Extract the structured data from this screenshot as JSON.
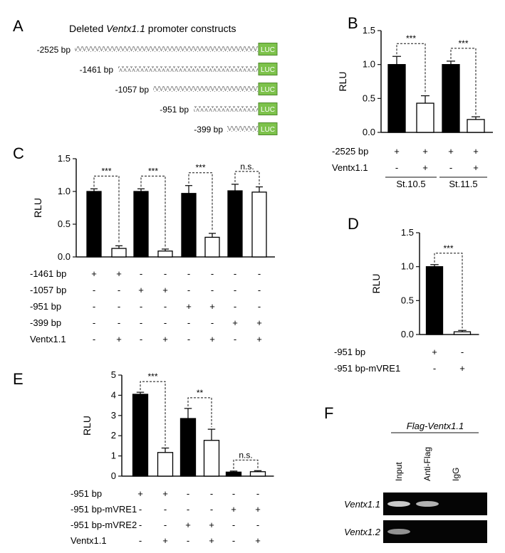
{
  "panel_letters": {
    "A": "A",
    "B": "B",
    "C": "C",
    "D": "D",
    "E": "E",
    "F": "F"
  },
  "panel_a": {
    "title_prefix": "Deleted ",
    "title_gene": "Ventx1.1",
    "title_suffix": " promoter constructs",
    "constructs": [
      {
        "label": "-2525 bp",
        "box": "LUC"
      },
      {
        "label": "-1461 bp",
        "box": "LUC"
      },
      {
        "label": "-1057 bp",
        "box": "LUC"
      },
      {
        "label": "-951 bp",
        "box": "LUC"
      },
      {
        "label": "-399 bp",
        "box": "LUC"
      }
    ],
    "box_color": "#7dc24b"
  },
  "chart_data": [
    {
      "panel": "B",
      "type": "bar",
      "ylabel": "RLU",
      "ylim": [
        0,
        1.5
      ],
      "yticks": [
        "0.0",
        "0.5",
        "1.0",
        "1.5"
      ],
      "bars": [
        {
          "value": 1.0,
          "err": 0.12,
          "fill": "black"
        },
        {
          "value": 0.43,
          "err": 0.11,
          "fill": "white"
        },
        {
          "value": 1.0,
          "err": 0.05,
          "fill": "black"
        },
        {
          "value": 0.19,
          "err": 0.04,
          "fill": "white"
        }
      ],
      "significance": [
        {
          "from": 0,
          "to": 1,
          "label": "***"
        },
        {
          "from": 2,
          "to": 3,
          "label": "***"
        }
      ],
      "condition_rows": [
        {
          "label": "-2525 bp",
          "marks": [
            "+",
            "+",
            "+",
            "+"
          ]
        },
        {
          "label": "Ventx1.1",
          "marks": [
            "-",
            "+",
            "-",
            "+"
          ]
        }
      ],
      "groups": [
        {
          "label": "St.10.5",
          "from": 0,
          "to": 1
        },
        {
          "label": "St.11.5",
          "from": 2,
          "to": 3
        }
      ]
    },
    {
      "panel": "C",
      "type": "bar",
      "ylabel": "RLU",
      "ylim": [
        0,
        1.5
      ],
      "yticks": [
        "0.0",
        "0.5",
        "1.0",
        "1.5"
      ],
      "bars": [
        {
          "value": 1.0,
          "err": 0.04,
          "fill": "black"
        },
        {
          "value": 0.13,
          "err": 0.04,
          "fill": "white"
        },
        {
          "value": 1.0,
          "err": 0.04,
          "fill": "black"
        },
        {
          "value": 0.09,
          "err": 0.03,
          "fill": "white"
        },
        {
          "value": 0.97,
          "err": 0.12,
          "fill": "black"
        },
        {
          "value": 0.3,
          "err": 0.06,
          "fill": "white"
        },
        {
          "value": 1.01,
          "err": 0.1,
          "fill": "black"
        },
        {
          "value": 0.99,
          "err": 0.08,
          "fill": "white"
        }
      ],
      "significance": [
        {
          "from": 0,
          "to": 1,
          "label": "***"
        },
        {
          "from": 2,
          "to": 3,
          "label": "***"
        },
        {
          "from": 4,
          "to": 5,
          "label": "***"
        },
        {
          "from": 6,
          "to": 7,
          "label": "n.s."
        }
      ],
      "condition_rows": [
        {
          "label": "-1461 bp",
          "marks": [
            "+",
            "+",
            "-",
            "-",
            "-",
            "-",
            "-",
            "-"
          ]
        },
        {
          "label": "-1057 bp",
          "marks": [
            "-",
            "-",
            "+",
            "+",
            "-",
            "-",
            "-",
            "-"
          ]
        },
        {
          "label": "-951 bp",
          "marks": [
            "-",
            "-",
            "-",
            "-",
            "+",
            "+",
            "-",
            "-"
          ]
        },
        {
          "label": "-399 bp",
          "marks": [
            "-",
            "-",
            "-",
            "-",
            "-",
            "-",
            "+",
            "+"
          ]
        },
        {
          "label": "Ventx1.1",
          "marks": [
            "-",
            "+",
            "-",
            "+",
            "-",
            "+",
            "-",
            "+"
          ]
        }
      ]
    },
    {
      "panel": "D",
      "type": "bar",
      "ylabel": "RLU",
      "ylim": [
        0,
        1.5
      ],
      "yticks": [
        "0.0",
        "0.5",
        "1.0",
        "1.5"
      ],
      "bars": [
        {
          "value": 1.0,
          "err": 0.03,
          "fill": "black"
        },
        {
          "value": 0.04,
          "err": 0.02,
          "fill": "white"
        }
      ],
      "significance": [
        {
          "from": 0,
          "to": 1,
          "label": "***"
        }
      ],
      "condition_rows": [
        {
          "label": "-951 bp",
          "marks": [
            "+",
            "-"
          ]
        },
        {
          "label": "-951 bp-mVRE1",
          "marks": [
            "-",
            "+"
          ]
        }
      ]
    },
    {
      "panel": "E",
      "type": "bar",
      "ylabel": "RLU",
      "ylim": [
        0,
        5
      ],
      "yticks": [
        "0",
        "1",
        "2",
        "3",
        "4",
        "5"
      ],
      "bars": [
        {
          "value": 4.05,
          "err": 0.1,
          "fill": "black"
        },
        {
          "value": 1.17,
          "err": 0.22,
          "fill": "white"
        },
        {
          "value": 2.85,
          "err": 0.5,
          "fill": "black"
        },
        {
          "value": 1.77,
          "err": 0.55,
          "fill": "white"
        },
        {
          "value": 0.2,
          "err": 0.05,
          "fill": "black"
        },
        {
          "value": 0.22,
          "err": 0.05,
          "fill": "white"
        }
      ],
      "significance": [
        {
          "from": 0,
          "to": 1,
          "label": "***"
        },
        {
          "from": 2,
          "to": 3,
          "label": "**"
        },
        {
          "from": 4,
          "to": 5,
          "label": "n.s."
        }
      ],
      "condition_rows": [
        {
          "label": "-951 bp",
          "marks": [
            "+",
            "+",
            "-",
            "-",
            "-",
            "-"
          ]
        },
        {
          "label": "-951 bp-mVRE1",
          "marks": [
            "-",
            "-",
            "-",
            "-",
            "+",
            "+"
          ]
        },
        {
          "label": "-951 bp-mVRE2",
          "marks": [
            "-",
            "-",
            "+",
            "+",
            "-",
            "-"
          ]
        },
        {
          "label": "Ventx1.1",
          "marks": [
            "-",
            "+",
            "-",
            "+",
            "-",
            "+"
          ]
        }
      ]
    }
  ],
  "panel_f": {
    "header": "Flag-Ventx1.1",
    "lanes": [
      "Input",
      "Anti-Flag",
      "IgG"
    ],
    "rows": [
      {
        "label": "Ventx1.1",
        "bands": [
          0.9,
          0.75,
          0.0
        ]
      },
      {
        "label": "Ventx1.2",
        "bands": [
          0.55,
          0.0,
          0.0
        ]
      }
    ]
  }
}
